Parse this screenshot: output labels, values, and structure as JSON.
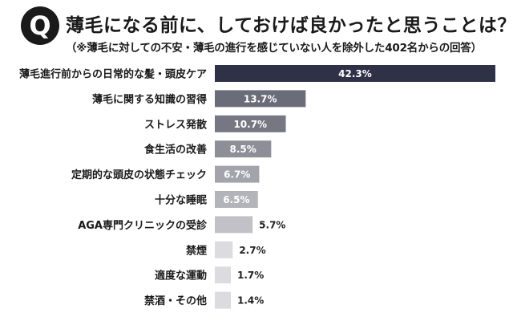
{
  "header": {
    "badge": "Q",
    "title": "薄毛になる前に、しておけば良かったと思うことは？",
    "subtitle": "（※薄毛に対しての不安・薄毛の進行を感じていない人を除外した402名からの回答）"
  },
  "chart_data": {
    "type": "bar",
    "orientation": "horizontal",
    "categories": [
      "薄毛進行前からの日常的な髪・頭皮ケア",
      "薄毛に関する知識の習得",
      "ストレス発散",
      "食生活の改善",
      "定期的な頭皮の状態チェック",
      "十分な睡眠",
      "AGA専門クリニックの受診",
      "禁煙",
      "適度な運動",
      "禁酒・その他"
    ],
    "values": [
      42.3,
      13.7,
      10.7,
      8.5,
      6.7,
      6.5,
      5.7,
      2.7,
      1.7,
      1.4
    ],
    "value_labels": [
      "42.3%",
      "13.7%",
      "10.7%",
      "8.5%",
      "6.7%",
      "6.5%",
      "5.7%",
      "2.7%",
      "1.7%",
      "1.4%"
    ],
    "xlim": [
      0,
      42.3
    ],
    "grid": false,
    "colors": [
      "#2f3247",
      "#6b6c7a",
      "#777783",
      "#8e8e98",
      "#a3a3ab",
      "#b3b3ba",
      "#c1c1c7",
      "#dcdce0",
      "#dcdce0",
      "#dcdce0"
    ],
    "label_color_inside": "#ffffff",
    "label_color_outside": "#222222"
  }
}
